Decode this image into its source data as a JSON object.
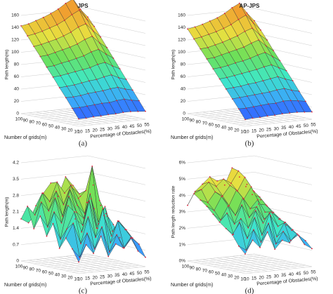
{
  "chart_data": [
    {
      "type": "surface",
      "title": "JPS",
      "caption": "(a)",
      "zlabel": "Path length(m)",
      "ylabel": "Number of grids(m)",
      "xlabel": "Percentage of Obstacles(%)",
      "x": [
        10,
        15,
        20,
        25,
        30,
        35,
        40,
        45,
        50,
        55
      ],
      "y": [
        10,
        20,
        30,
        40,
        50,
        60,
        70,
        80,
        90,
        100
      ],
      "xlim": [
        10,
        55
      ],
      "ylim": [
        10,
        100
      ],
      "zlim": [
        0,
        160
      ],
      "zticks": [
        0,
        20,
        40,
        60,
        80,
        100,
        120,
        140,
        160
      ],
      "colormap": [
        "#2b2bff",
        "#3aa0ff",
        "#3ee8c8",
        "#6be05a",
        "#e8e040",
        "#f0a030"
      ],
      "marker_color": "#e0203a",
      "z": [
        [
          12,
          12,
          13,
          13,
          14,
          14,
          15,
          15,
          14,
          13
        ],
        [
          27,
          27,
          28,
          29,
          30,
          30,
          32,
          33,
          30,
          28
        ],
        [
          42,
          42,
          43,
          45,
          46,
          47,
          49,
          50,
          46,
          43
        ],
        [
          56,
          57,
          58,
          60,
          62,
          63,
          66,
          68,
          62,
          58
        ],
        [
          71,
          72,
          74,
          76,
          78,
          80,
          84,
          86,
          79,
          73
        ],
        [
          85,
          86,
          89,
          91,
          94,
          97,
          102,
          105,
          96,
          88
        ],
        [
          100,
          101,
          104,
          107,
          110,
          114,
          120,
          124,
          112,
          103
        ],
        [
          114,
          116,
          119,
          122,
          126,
          131,
          138,
          142,
          129,
          118
        ],
        [
          129,
          131,
          134,
          138,
          142,
          148,
          156,
          162,
          146,
          133
        ],
        [
          143,
          145,
          149,
          153,
          158,
          164,
          172,
          178,
          160,
          146
        ]
      ]
    },
    {
      "type": "surface",
      "title": "AP-JPS",
      "caption": "(b)",
      "zlabel": "Path length(m)",
      "ylabel": "Number of grids(m)",
      "xlabel": "Percentage of Obstacles(%)",
      "x": [
        10,
        15,
        20,
        25,
        30,
        35,
        40,
        45,
        50,
        55
      ],
      "y": [
        10,
        20,
        30,
        40,
        50,
        60,
        70,
        80,
        90,
        100
      ],
      "xlim": [
        10,
        55
      ],
      "ylim": [
        10,
        100
      ],
      "zlim": [
        0,
        160
      ],
      "zticks": [
        0,
        20,
        40,
        60,
        80,
        100,
        120,
        140,
        160
      ],
      "colormap": [
        "#2b2bff",
        "#3aa0ff",
        "#3ee8c8",
        "#6be05a",
        "#e8e040",
        "#f0a030"
      ],
      "marker_color": "#e0203a",
      "z": [
        [
          11,
          12,
          12,
          13,
          13,
          14,
          14,
          14,
          13,
          12
        ],
        [
          26,
          26,
          27,
          28,
          29,
          29,
          31,
          31,
          29,
          27
        ],
        [
          40,
          41,
          42,
          43,
          44,
          45,
          47,
          48,
          44,
          41
        ],
        [
          54,
          55,
          56,
          58,
          59,
          61,
          63,
          65,
          60,
          56
        ],
        [
          68,
          69,
          71,
          73,
          75,
          77,
          80,
          82,
          76,
          70
        ],
        [
          82,
          83,
          85,
          88,
          90,
          93,
          97,
          100,
          92,
          84
        ],
        [
          96,
          97,
          100,
          103,
          106,
          109,
          114,
          118,
          107,
          98
        ],
        [
          110,
          111,
          114,
          117,
          121,
          125,
          131,
          135,
          123,
          113
        ],
        [
          124,
          126,
          129,
          132,
          136,
          141,
          148,
          154,
          140,
          127
        ],
        [
          138,
          140,
          143,
          147,
          151,
          157,
          165,
          171,
          154,
          140
        ]
      ]
    },
    {
      "type": "surface",
      "caption": "(c)",
      "zlabel": "Path length(m)",
      "ylabel": "Number of grids(m)",
      "xlabel": "Percentage of Obstacles(%)",
      "x": [
        10,
        15,
        20,
        25,
        30,
        35,
        40,
        45,
        50,
        55
      ],
      "y": [
        10,
        20,
        30,
        40,
        50,
        60,
        70,
        80,
        90,
        100
      ],
      "xlim": [
        10,
        55
      ],
      "ylim": [
        10,
        100
      ],
      "zlim": [
        0,
        4.2
      ],
      "zticks": [
        0,
        0.7,
        1.4,
        2.1,
        2.8,
        3.5,
        4.2
      ],
      "colormap": [
        "#2b2bff",
        "#3aa0ff",
        "#3ee8c8",
        "#6be05a",
        "#e8e040",
        "#f0a030"
      ],
      "marker_color": "#e0203a",
      "z": [
        [
          0.5,
          1.2,
          0.8,
          1.5,
          0.6,
          1.1,
          0.9,
          1.3,
          0.7,
          0.4
        ],
        [
          1.0,
          0.6,
          1.6,
          0.9,
          1.8,
          0.7,
          1.4,
          0.8,
          1.2,
          0.9
        ],
        [
          1.4,
          2.0,
          1.1,
          2.2,
          1.3,
          2.5,
          1.0,
          1.9,
          1.5,
          1.1
        ],
        [
          0.9,
          1.7,
          2.4,
          1.5,
          2.8,
          1.6,
          2.1,
          1.2,
          1.8,
          1.4
        ],
        [
          1.9,
          1.2,
          2.6,
          2.0,
          1.7,
          3.0,
          1.5,
          2.4,
          1.3,
          1.0
        ],
        [
          1.3,
          2.3,
          1.8,
          2.9,
          2.2,
          1.9,
          2.7,
          1.6,
          2.0,
          1.5
        ],
        [
          2.1,
          1.6,
          2.8,
          2.0,
          3.1,
          2.4,
          2.0,
          4.0,
          2.5,
          1.8
        ],
        [
          1.5,
          2.6,
          2.2,
          3.0,
          2.4,
          3.2,
          2.6,
          2.9,
          3.1,
          2.2
        ],
        [
          2.4,
          2.0,
          2.9,
          2.5,
          3.3,
          2.8,
          3.0,
          2.7,
          2.3,
          2.0
        ],
        [
          1.8,
          1.6,
          2.3,
          2.8,
          3.2,
          2.6,
          3.4,
          3.0,
          2.5,
          2.2
        ]
      ]
    },
    {
      "type": "surface",
      "caption": "(d)",
      "zlabel": "Path length reduction rate",
      "ylabel": "Number of grids(m)",
      "xlabel": "Percentage of Obstacles(%)",
      "x": [
        10,
        15,
        20,
        25,
        30,
        35,
        40,
        45,
        50,
        55
      ],
      "y": [
        10,
        20,
        30,
        40,
        50,
        60,
        70,
        80,
        90,
        100
      ],
      "xlim": [
        10,
        55
      ],
      "ylim": [
        10,
        100
      ],
      "zlim": [
        0,
        6
      ],
      "zticks": [
        {
          "value": 0,
          "label": "0%"
        },
        {
          "value": 1,
          "label": "1%"
        },
        {
          "value": 2,
          "label": "2%"
        },
        {
          "value": 3,
          "label": "3%"
        },
        {
          "value": 4,
          "label": "4%"
        },
        {
          "value": 5,
          "label": "5%"
        },
        {
          "value": 6,
          "label": "6%"
        }
      ],
      "colormap": [
        "#2b2bff",
        "#3aa0ff",
        "#3ee8c8",
        "#6be05a",
        "#e8e040",
        "#f0a030"
      ],
      "marker_color": "#e0203a",
      "z": [
        [
          1.2,
          2.0,
          1.5,
          2.4,
          1.3,
          1.8,
          1.6,
          2.1,
          1.4,
          1.1
        ],
        [
          1.6,
          1.3,
          2.5,
          1.7,
          2.8,
          1.5,
          2.2,
          1.6,
          1.9,
          1.5
        ],
        [
          2.2,
          2.9,
          1.9,
          3.1,
          2.0,
          3.3,
          1.8,
          2.6,
          2.1,
          1.7
        ],
        [
          2.5,
          2.1,
          3.0,
          2.4,
          3.4,
          2.6,
          3.0,
          2.3,
          2.5,
          2.0
        ],
        [
          2.8,
          3.3,
          2.6,
          3.7,
          2.9,
          3.5,
          2.7,
          3.1,
          2.6,
          2.2
        ],
        [
          3.2,
          2.8,
          3.6,
          3.0,
          4.0,
          3.3,
          3.8,
          3.0,
          2.9,
          2.5
        ],
        [
          3.6,
          3.3,
          4.1,
          3.5,
          4.4,
          3.8,
          4.5,
          3.4,
          3.3,
          2.8
        ],
        [
          3.9,
          3.7,
          4.3,
          4.0,
          4.6,
          4.2,
          5.0,
          3.9,
          3.7,
          3.1
        ],
        [
          4.2,
          4.4,
          4.8,
          4.5,
          4.9,
          4.6,
          5.3,
          4.3,
          4.0,
          3.4
        ],
        [
          3.4,
          4.2,
          4.6,
          5.0,
          4.7,
          4.4,
          5.4,
          4.8,
          4.3,
          3.8
        ]
      ]
    }
  ]
}
